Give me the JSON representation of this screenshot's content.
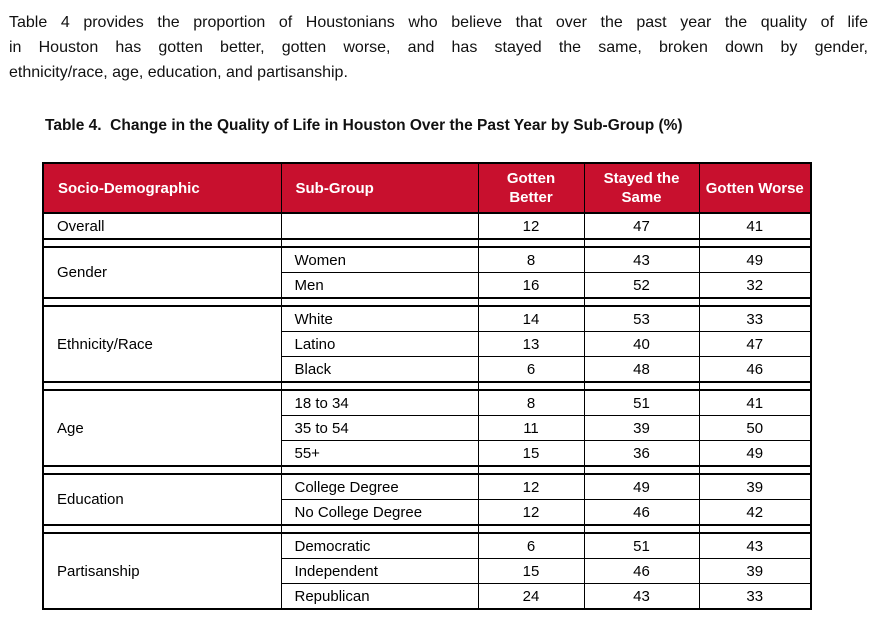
{
  "page": {
    "intro_lines": [
      "Table 4 provides the proportion of Houstonians who believe that over the past year the quality of life",
      "in Houston has gotten better, gotten worse, and has stayed the same, broken down by gender,",
      "ethnicity/race, age, education, and partisanship."
    ],
    "title": "Table 4.  Change in the Quality of Life in Houston Over the Past Year by Sub-Group (%)"
  },
  "table": {
    "colors": {
      "header_bg": "#C8102E",
      "header_text": "#FFFFFF",
      "border": "#000000"
    },
    "headers": {
      "socio": "Socio-Demographic",
      "sub": "Sub-Group",
      "better": "Gotten Better",
      "same": "Stayed the Same",
      "worse": "Gotten Worse"
    },
    "groups": [
      {
        "label": "Overall",
        "rows": [
          {
            "sub": "",
            "values": [
              "12",
              "47",
              "41"
            ]
          }
        ]
      },
      {
        "label": "Gender",
        "rows": [
          {
            "sub": "Women",
            "values": [
              "8",
              "43",
              "49"
            ]
          },
          {
            "sub": "Men",
            "values": [
              "16",
              "52",
              "32"
            ]
          }
        ]
      },
      {
        "label": "Ethnicity/Race",
        "rows": [
          {
            "sub": "White",
            "values": [
              "14",
              "53",
              "33"
            ]
          },
          {
            "sub": "Latino",
            "values": [
              "13",
              "40",
              "47"
            ]
          },
          {
            "sub": "Black",
            "values": [
              "6",
              "48",
              "46"
            ]
          }
        ]
      },
      {
        "label": "Age",
        "rows": [
          {
            "sub": "18 to 34",
            "values": [
              "8",
              "51",
              "41"
            ]
          },
          {
            "sub": "35 to 54",
            "values": [
              "11",
              "39",
              "50"
            ]
          },
          {
            "sub": "55+",
            "values": [
              "15",
              "36",
              "49"
            ]
          }
        ]
      },
      {
        "label": "Education",
        "rows": [
          {
            "sub": "College Degree",
            "values": [
              "12",
              "49",
              "39"
            ]
          },
          {
            "sub": "No College Degree",
            "values": [
              "12",
              "46",
              "42"
            ]
          }
        ]
      },
      {
        "label": "Partisanship",
        "rows": [
          {
            "sub": "Democratic",
            "values": [
              "6",
              "51",
              "43"
            ]
          },
          {
            "sub": "Independent",
            "values": [
              "15",
              "46",
              "39"
            ]
          },
          {
            "sub": "Republican",
            "values": [
              "24",
              "43",
              "33"
            ]
          }
        ]
      }
    ]
  }
}
